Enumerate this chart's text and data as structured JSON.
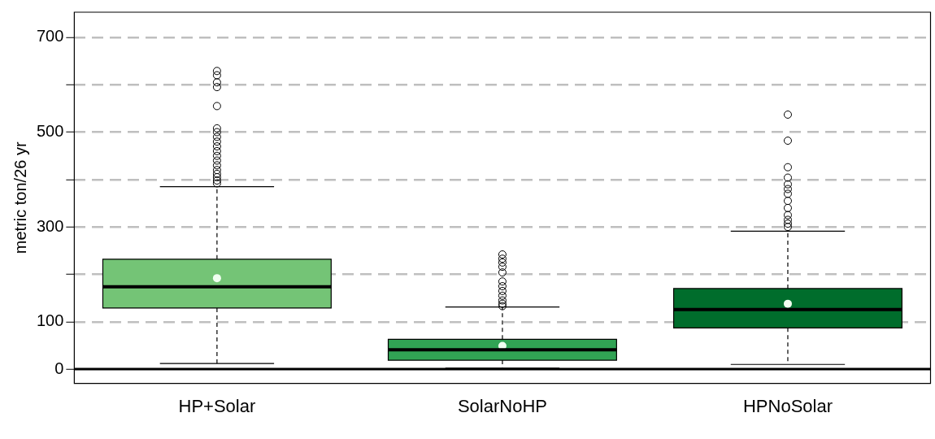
{
  "chart_data": {
    "type": "box",
    "ylabel": "metric ton/26 yr",
    "categories": [
      "HP+Solar",
      "SolarNoHP",
      "HPNoSolar"
    ],
    "colors": [
      "#74c476",
      "#31a354",
      "#006d2c"
    ],
    "boxes": [
      {
        "low": 12,
        "q1": 129,
        "median": 174,
        "q3": 232,
        "high": 385,
        "mean": 192,
        "outliers": [
          629,
          620,
          605,
          595,
          555,
          508,
          500,
          490,
          480,
          470,
          460,
          450,
          440,
          430,
          420,
          412,
          405,
          398,
          392
        ]
      },
      {
        "low": 2,
        "q1": 19,
        "median": 41,
        "q3": 63,
        "high": 131,
        "mean": 49,
        "outliers": [
          242,
          233,
          225,
          216,
          204,
          185,
          175,
          165,
          155,
          145,
          138,
          133
        ]
      },
      {
        "low": 10,
        "q1": 87,
        "median": 126,
        "q3": 170,
        "high": 291,
        "mean": 138,
        "outliers": [
          537,
          482,
          426,
          404,
          390,
          380,
          370,
          355,
          340,
          325,
          315,
          307,
          300
        ]
      }
    ],
    "ylim": [
      -30,
      753
    ],
    "yticks": [
      0,
      100,
      {
        "value": 200,
        "label": null
      },
      300,
      {
        "value": 400,
        "label": null
      },
      500,
      {
        "value": 600,
        "label": null
      },
      700
    ],
    "grid": "y",
    "ref_lines": [
      {
        "axis": "y",
        "value": 0,
        "label": null,
        "color": "#000000"
      }
    ],
    "legend": false
  }
}
